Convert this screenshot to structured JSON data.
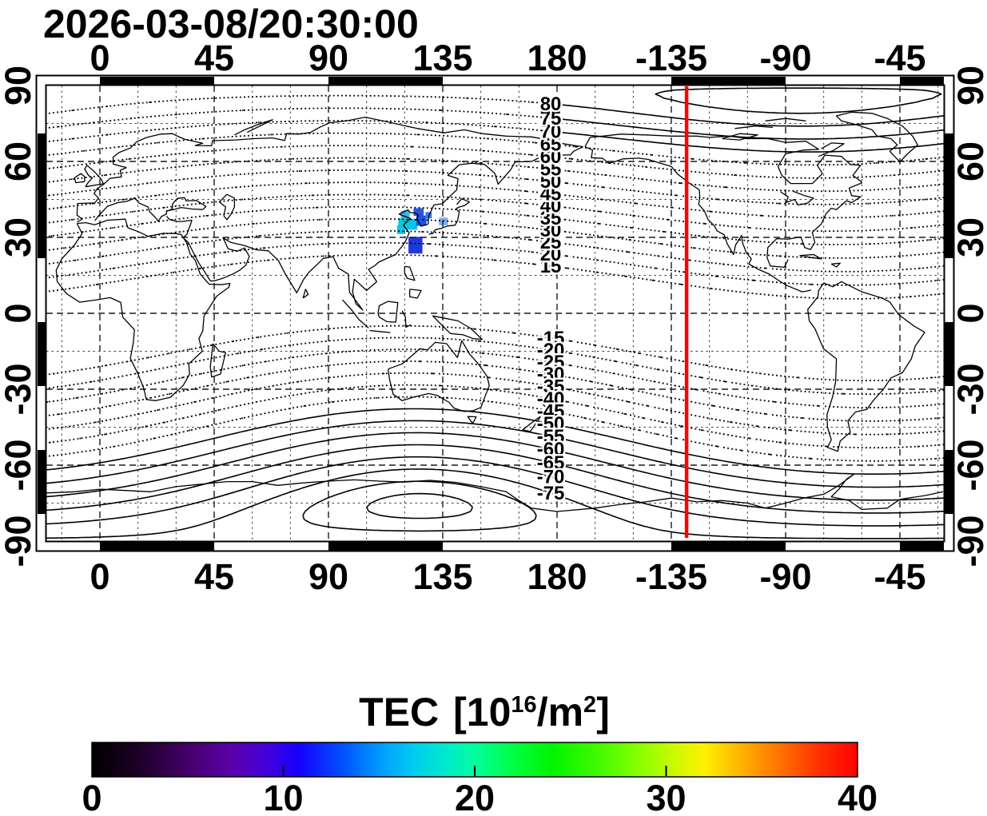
{
  "title": "2026-03-08/20:30:00",
  "chart_data": {
    "type": "map-contour",
    "datetime_label": "2026-03-08/20:30:00",
    "projection": "equirectangular",
    "axes": {
      "lon_ticks": [
        {
          "value": 0,
          "label": "0"
        },
        {
          "value": 45,
          "label": "45"
        },
        {
          "value": 90,
          "label": "90"
        },
        {
          "value": 135,
          "label": "135"
        },
        {
          "value": 180,
          "label": "180"
        },
        {
          "value": 225,
          "label": "-135"
        },
        {
          "value": 270,
          "label": "-90"
        },
        {
          "value": 315,
          "label": "-45"
        }
      ],
      "lat_ticks": [
        {
          "value": 90,
          "label": "90"
        },
        {
          "value": 60,
          "label": "60"
        },
        {
          "value": 30,
          "label": "30"
        },
        {
          "value": 0,
          "label": "0"
        },
        {
          "value": -30,
          "label": "-30"
        },
        {
          "value": -60,
          "label": "-60"
        },
        {
          "value": -90,
          "label": "-90"
        }
      ],
      "grid_step_deg": 15,
      "lon_range": [
        -21.1,
        332.4
      ],
      "lat_range": [
        -90,
        90
      ]
    },
    "contours": {
      "levels_north": [
        15,
        20,
        25,
        30,
        35,
        40,
        45,
        50,
        55,
        60,
        65,
        70,
        75,
        80
      ],
      "levels_south": [
        -15,
        -20,
        -25,
        -30,
        -35,
        -40,
        -45,
        -50,
        -55,
        -60,
        -65,
        -70,
        -75
      ],
      "extra_levels": [
        85,
        -80,
        -85
      ],
      "solid_south_threshold": -50,
      "label_lon_deg": 177.5,
      "north_pole": {
        "lat": 84,
        "lon": -85
      },
      "south_pole": {
        "lat": -76,
        "lon": 126
      }
    },
    "red_line": {
      "lon": -129,
      "color": "#ff0000"
    },
    "tec_patches": [
      {
        "lon": 118.5,
        "lat": 40.5,
        "dlon": 3.5,
        "dlat": 3.0,
        "color": "#38b4ee",
        "tec": 14
      },
      {
        "lon": 117.5,
        "lat": 37.5,
        "dlon": 5.0,
        "dlat": 4.5,
        "color": "#00ccdf",
        "tec": 16
      },
      {
        "lon": 117.0,
        "lat": 34.8,
        "dlon": 3.2,
        "dlat": 3.5,
        "color": "#10c4e8",
        "tec": 15
      },
      {
        "lon": 122.0,
        "lat": 37.2,
        "dlon": 3.0,
        "dlat": 4.2,
        "color": "#00c4ef",
        "tec": 15
      },
      {
        "lon": 123.5,
        "lat": 41.5,
        "dlon": 4.0,
        "dlat": 3.0,
        "color": "#2356e5",
        "tec": 9
      },
      {
        "lon": 124.6,
        "lat": 38.6,
        "dlon": 4.0,
        "dlat": 4.0,
        "color": "#1b51e8",
        "tec": 9
      },
      {
        "lon": 128.2,
        "lat": 40.0,
        "dlon": 2.5,
        "dlat": 2.5,
        "color": "#2f7bf2",
        "tec": 11
      },
      {
        "lon": 133.5,
        "lat": 37.8,
        "dlon": 3.5,
        "dlat": 3.0,
        "color": "#7fabf7",
        "tec": 12
      },
      {
        "lon": 121.5,
        "lat": 30.2,
        "dlon": 5.5,
        "dlat": 6.6,
        "color": "#2336dd",
        "tec": 8
      }
    ],
    "colorbar": {
      "title_word": "TEC",
      "title_open": "[10",
      "title_sup1": "16",
      "title_mid": "/m",
      "title_sup2": "2",
      "title_close": "]",
      "min": 0,
      "max": 40,
      "ticks": [
        {
          "value": 0,
          "label": "0"
        },
        {
          "value": 10,
          "label": "10"
        },
        {
          "value": 20,
          "label": "20"
        },
        {
          "value": 30,
          "label": "30"
        },
        {
          "value": 40,
          "label": "40"
        }
      ],
      "gradient": [
        {
          "at": 0.0,
          "c": "#000000"
        },
        {
          "at": 0.06,
          "c": "#1c0026"
        },
        {
          "at": 0.13,
          "c": "#46006e"
        },
        {
          "at": 0.18,
          "c": "#5c00a8"
        },
        {
          "at": 0.23,
          "c": "#4300dc"
        },
        {
          "at": 0.27,
          "c": "#1500ff"
        },
        {
          "at": 0.33,
          "c": "#0055ff"
        },
        {
          "at": 0.38,
          "c": "#00a0ff"
        },
        {
          "at": 0.42,
          "c": "#00ccf0"
        },
        {
          "at": 0.46,
          "c": "#00e8d0"
        },
        {
          "at": 0.5,
          "c": "#00ff9c"
        },
        {
          "at": 0.55,
          "c": "#00ff44"
        },
        {
          "at": 0.6,
          "c": "#00f400"
        },
        {
          "at": 0.66,
          "c": "#40fa00"
        },
        {
          "at": 0.72,
          "c": "#90ff00"
        },
        {
          "at": 0.77,
          "c": "#d8f800"
        },
        {
          "at": 0.8,
          "c": "#fff000"
        },
        {
          "at": 0.85,
          "c": "#ffb000"
        },
        {
          "at": 0.9,
          "c": "#ff7000"
        },
        {
          "at": 0.95,
          "c": "#ff3000"
        },
        {
          "at": 1.0,
          "c": "#ff0000"
        }
      ]
    }
  }
}
